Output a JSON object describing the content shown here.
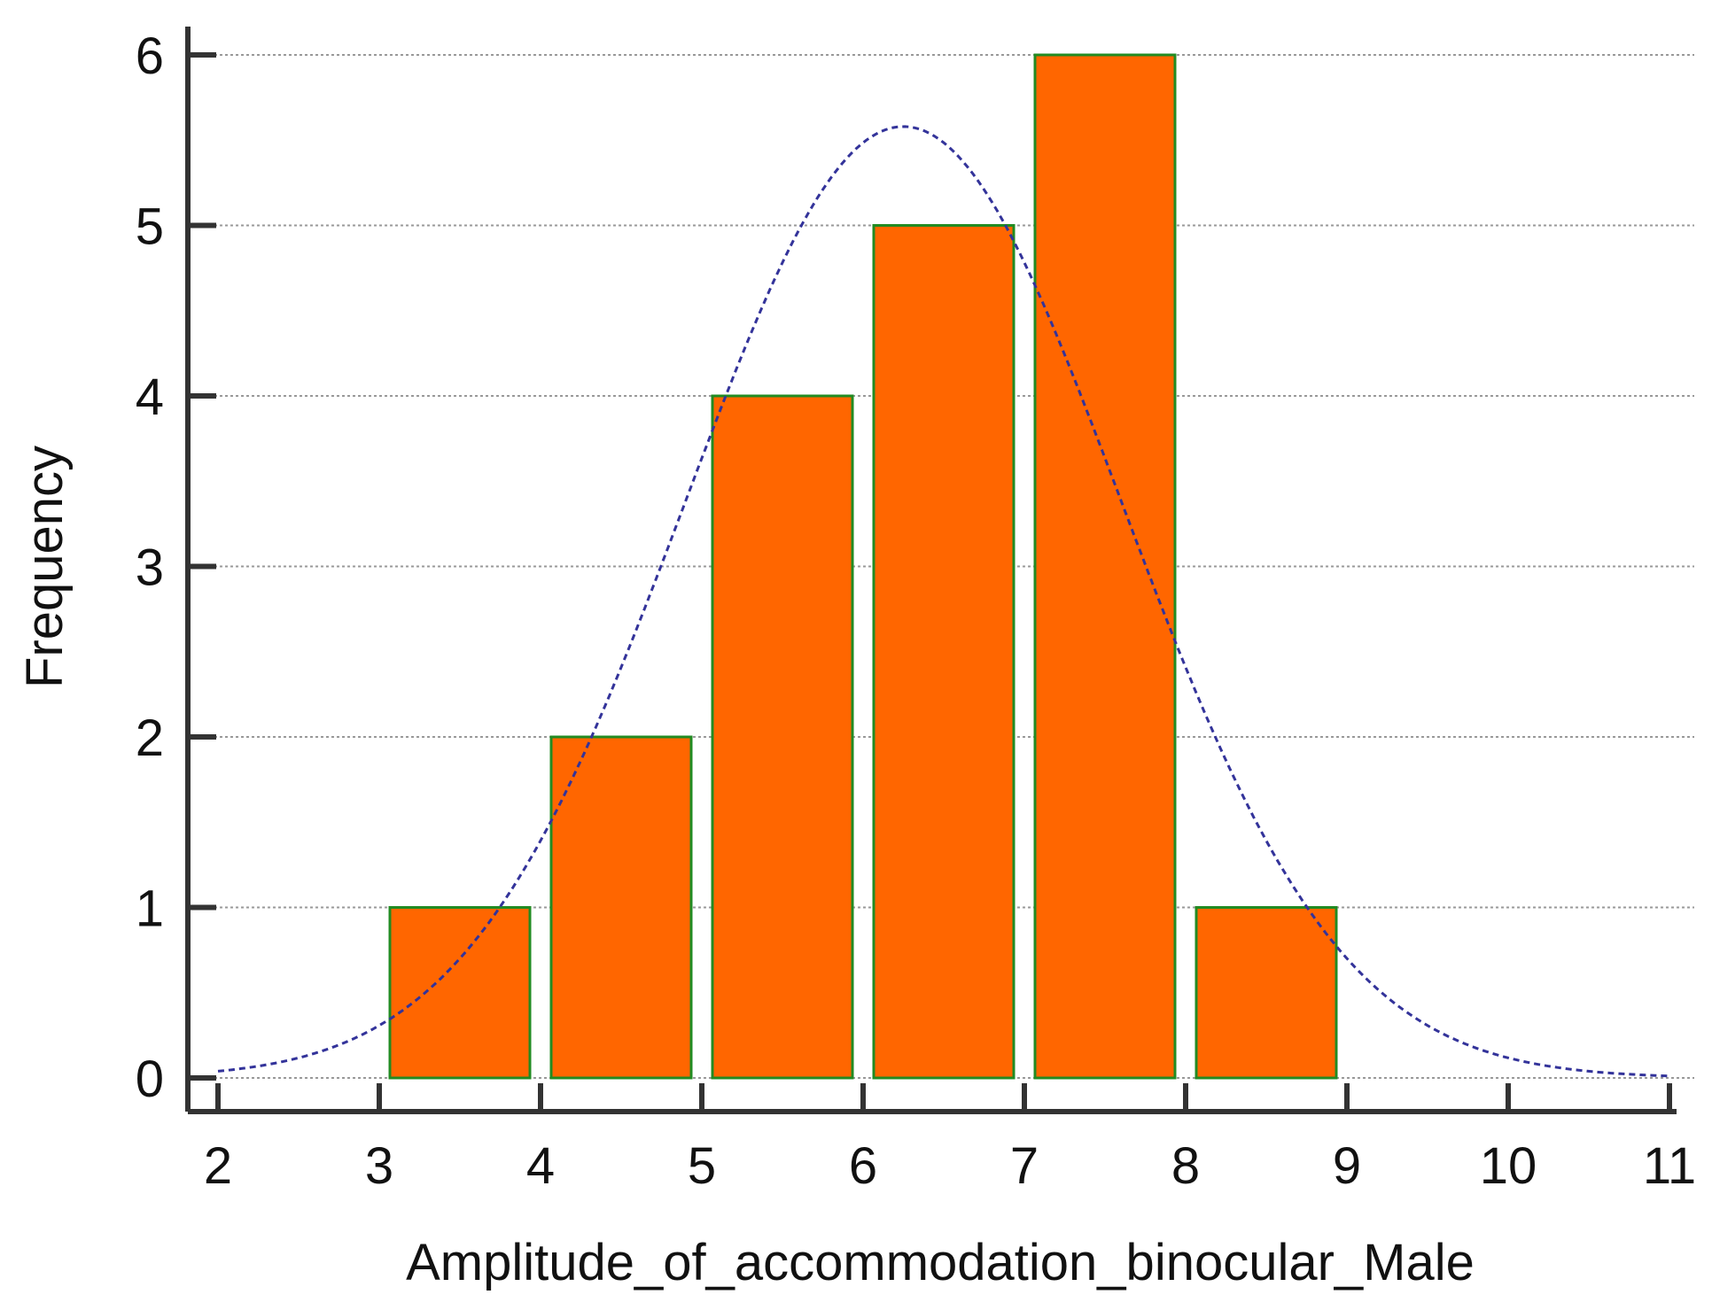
{
  "chart_data": {
    "type": "histogram",
    "xlabel": "Amplitude_of_accommodation_binocular_Male",
    "ylabel": "Frequency",
    "xlim": [
      2,
      11
    ],
    "ylim": [
      0,
      6
    ],
    "xticks": [
      2,
      3,
      4,
      5,
      6,
      7,
      8,
      9,
      10,
      11
    ],
    "yticks": [
      0,
      1,
      2,
      3,
      4,
      5,
      6
    ],
    "grid": "horizontal dotted",
    "bins": [
      {
        "x0": 3,
        "x1": 4,
        "count": 1
      },
      {
        "x0": 4,
        "x1": 5,
        "count": 2
      },
      {
        "x0": 5,
        "x1": 6,
        "count": 4
      },
      {
        "x0": 6,
        "x1": 7,
        "count": 5
      },
      {
        "x0": 7,
        "x1": 8,
        "count": 6
      },
      {
        "x0": 8,
        "x1": 9,
        "count": 1
      }
    ],
    "curve": {
      "kind": "normal",
      "mean": 6.25,
      "sd": 1.35,
      "peak": 5.58,
      "range": [
        2,
        11
      ],
      "style": "dashed"
    },
    "colors": {
      "bar_fill": "#ff6600",
      "bar_stroke": "#228B22",
      "curve": "#33339a",
      "axis": "#333333",
      "grid": "#999999"
    }
  }
}
